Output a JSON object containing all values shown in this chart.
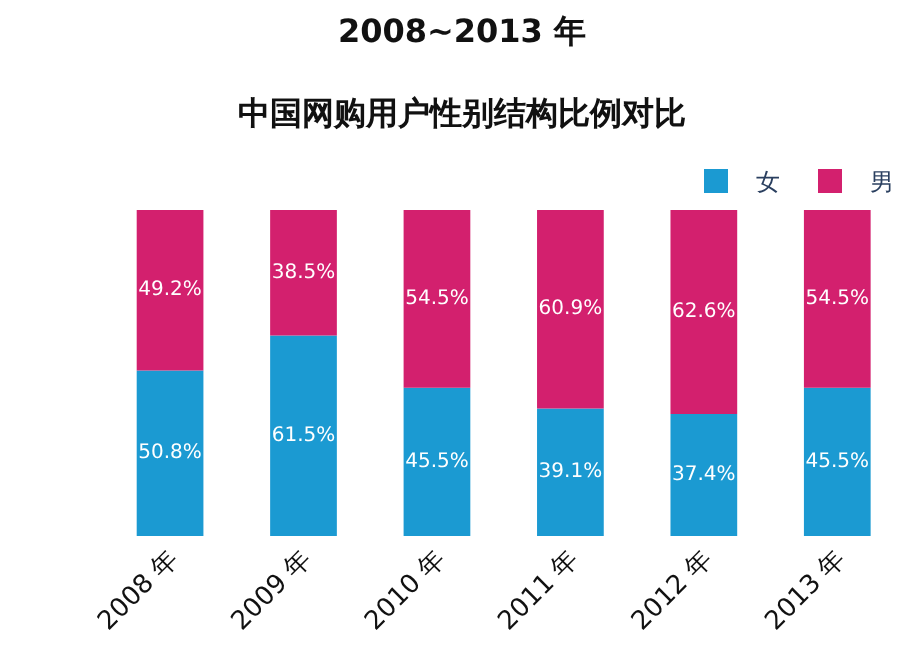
{
  "chart_data": {
    "type": "bar",
    "title": "2008~2013 年",
    "subtitle": "中国网购用户性别结构比例对比",
    "categories": [
      "2008 年",
      "2009 年",
      "2010 年",
      "2011 年",
      "2012 年",
      "2013 年"
    ],
    "stacked": true,
    "legend": "top right",
    "series": [
      {
        "name": "女",
        "color": "#1b9ad2",
        "values": [
          50.8,
          61.5,
          45.5,
          39.1,
          37.4,
          45.5
        ],
        "value_labels": [
          "50.8%",
          "61.5%",
          "45.5%",
          "39.1%",
          "37.4%",
          "45.5%"
        ]
      },
      {
        "name": "男",
        "color": "#d3206e",
        "values": [
          49.2,
          38.5,
          54.5,
          60.9,
          62.6,
          54.5
        ],
        "value_labels": [
          "49.2%",
          "38.5%",
          "54.5%",
          "60.9%",
          "62.6%",
          "54.5%"
        ]
      }
    ]
  }
}
